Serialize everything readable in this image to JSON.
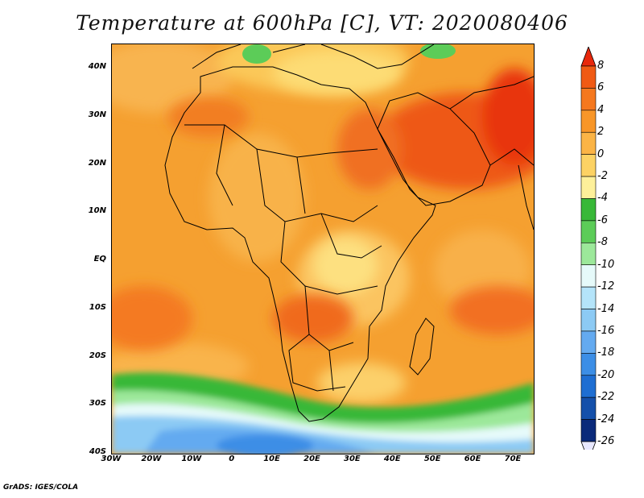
{
  "title": "Temperature at 600hPa [C], VT: 2020080406",
  "footer": "GrADS: IGES/COLA",
  "map": {
    "lon_range": [
      -30,
      75
    ],
    "lat_range": [
      -40,
      45
    ],
    "lat_ticks": [
      "40N",
      "30N",
      "20N",
      "10N",
      "EQ",
      "10S",
      "20S",
      "30S",
      "40S"
    ],
    "lon_ticks": [
      "30W",
      "20W",
      "10W",
      "0",
      "10E",
      "20E",
      "30E",
      "40E",
      "50E",
      "60E",
      "70E"
    ]
  },
  "colorbar": {
    "labels": [
      "8",
      "6",
      "4",
      "2",
      "0",
      "-2",
      "-4",
      "-6",
      "-8",
      "-10",
      "-12",
      "-14",
      "-16",
      "-18",
      "-20",
      "-22",
      "-24",
      "-26"
    ],
    "colors": [
      "#e8280c",
      "#f05a14",
      "#f5781e",
      "#f89628",
      "#fbb446",
      "#fcd264",
      "#fdf09a",
      "#38b838",
      "#5ccc58",
      "#9ce89a",
      "#e6fafa",
      "#b4e4fa",
      "#8ccaf4",
      "#64aaf0",
      "#3c8ee6",
      "#1e6ed2",
      "#1450aa",
      "#0a2a7a",
      "#e8e8ff"
    ]
  }
}
